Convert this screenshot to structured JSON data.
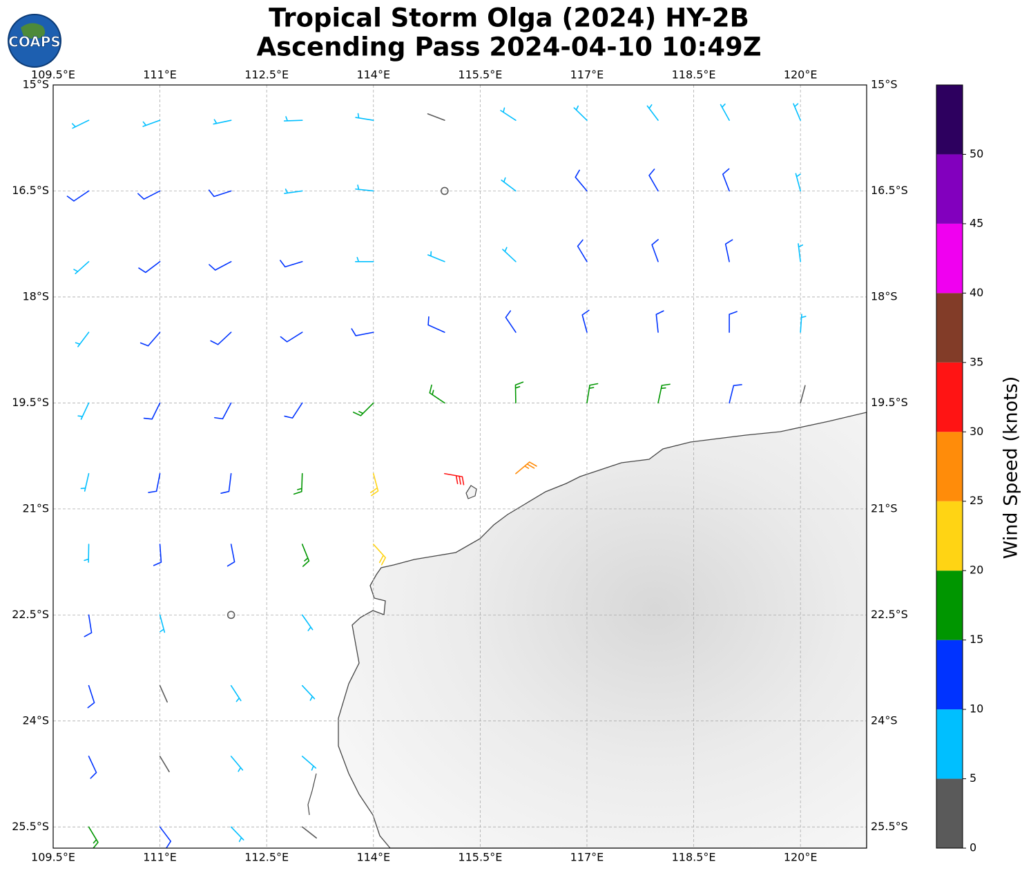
{
  "chart_data": {
    "type": "wind-barbs",
    "logo": "COAPS",
    "title": "Tropical Storm Olga (2024) HY-2B",
    "subtitle": "Ascending Pass 2024-04-10 10:49Z",
    "xlim": [
      109.5,
      120.93
    ],
    "ylim": [
      -25.8,
      -15
    ],
    "xticks": [
      {
        "value": 109.5,
        "label": "109.5°E"
      },
      {
        "value": 111,
        "label": "111°E"
      },
      {
        "value": 112.5,
        "label": "112.5°E"
      },
      {
        "value": 114,
        "label": "114°E"
      },
      {
        "value": 115.5,
        "label": "115.5°E"
      },
      {
        "value": 117,
        "label": "117°E"
      },
      {
        "value": 118.5,
        "label": "118.5°E"
      },
      {
        "value": 120,
        "label": "120°E"
      }
    ],
    "yticks": [
      {
        "value": -15,
        "label": "15°S"
      },
      {
        "value": -16.5,
        "label": "16.5°S"
      },
      {
        "value": -18,
        "label": "18°S"
      },
      {
        "value": -19.5,
        "label": "19.5°S"
      },
      {
        "value": -21,
        "label": "21°S"
      },
      {
        "value": -22.5,
        "label": "22.5°S"
      },
      {
        "value": -24,
        "label": "24°S"
      },
      {
        "value": -25.5,
        "label": "25.5°S"
      }
    ],
    "grid": true,
    "colorbar": {
      "label": "Wind Speed (knots)",
      "lim": [
        0,
        55
      ],
      "ticks": [
        0,
        5,
        10,
        15,
        20,
        25,
        30,
        35,
        40,
        45,
        50
      ],
      "colors": [
        "#5a5a5a",
        "#00bfff",
        "#0033ff",
        "#009600",
        "#ffd414",
        "#ff8c0a",
        "#ff1414",
        "#823c28",
        "#f000f0",
        "#8200be",
        "#2d005f"
      ]
    },
    "barbs": {
      "lon": [
        110,
        111,
        112,
        113,
        114,
        115,
        116,
        117,
        118,
        119,
        120,
        110,
        111,
        112,
        113,
        114,
        115,
        116,
        117,
        118,
        119,
        120,
        110,
        111,
        112,
        113,
        114,
        115,
        116,
        117,
        118,
        119,
        120,
        110,
        111,
        112,
        113,
        114,
        115,
        116,
        117,
        118,
        119,
        120,
        110,
        111,
        112,
        113,
        114,
        115,
        116,
        117,
        118,
        119,
        120,
        110,
        111,
        112,
        113,
        114,
        115,
        116,
        110,
        111,
        112,
        113,
        114,
        110,
        111,
        112,
        113,
        110,
        111,
        112,
        113,
        110,
        111,
        112,
        113,
        110,
        111,
        112,
        113
      ],
      "lat": [
        -15.5,
        -15.5,
        -15.5,
        -15.5,
        -15.5,
        -15.5,
        -15.5,
        -15.5,
        -15.5,
        -15.5,
        -15.5,
        -16.5,
        -16.5,
        -16.5,
        -16.5,
        -16.5,
        -16.5,
        -16.5,
        -16.5,
        -16.5,
        -16.5,
        -16.5,
        -17.5,
        -17.5,
        -17.5,
        -17.5,
        -17.5,
        -17.5,
        -17.5,
        -17.5,
        -17.5,
        -17.5,
        -17.5,
        -18.5,
        -18.5,
        -18.5,
        -18.5,
        -18.5,
        -18.5,
        -18.5,
        -18.5,
        -18.5,
        -18.5,
        -18.5,
        -19.5,
        -19.5,
        -19.5,
        -19.5,
        -19.5,
        -19.5,
        -19.5,
        -19.5,
        -19.5,
        -19.5,
        -19.5,
        -20.5,
        -20.5,
        -20.5,
        -20.5,
        -20.5,
        -20.5,
        -20.5,
        -21.5,
        -21.5,
        -21.5,
        -21.5,
        -21.5,
        -22.5,
        -22.5,
        -22.5,
        -22.5,
        -23.5,
        -23.5,
        -23.5,
        -23.5,
        -24.5,
        -24.5,
        -24.5,
        -24.5,
        -25.5,
        -25.5,
        -25.5,
        -25.5
      ],
      "speed": [
        9,
        9,
        8,
        8,
        6,
        3,
        6,
        8,
        9,
        9,
        8,
        11,
        12,
        11,
        9,
        6,
        2,
        7,
        11,
        12,
        10,
        8,
        9,
        11,
        12,
        12,
        9,
        7,
        9,
        12,
        13,
        11,
        8,
        9,
        11,
        13,
        14,
        12,
        11,
        12,
        14,
        13,
        11,
        9,
        9,
        11,
        13,
        14,
        17,
        17,
        19,
        18,
        15,
        12,
        4,
        9,
        11,
        13,
        15,
        22,
        31,
        27,
        9,
        11,
        13,
        17,
        22,
        10,
        8,
        2,
        9,
        11,
        4,
        6,
        9,
        13,
        4,
        8,
        8,
        16,
        12,
        6,
        4
      ],
      "direction": [
        244,
        250,
        258,
        268,
        279,
        291,
        303,
        314,
        323,
        331,
        337,
        236,
        243,
        252,
        262,
        276,
        292,
        307,
        320,
        330,
        339,
        345,
        228,
        233,
        242,
        253,
        270,
        292,
        313,
        329,
        340,
        348,
        353,
        217,
        221,
        227,
        238,
        259,
        294,
        326,
        345,
        354,
        0,
        4,
        205,
        206,
        208,
        213,
        225,
        304,
        359,
        9,
        12,
        14,
        15,
        193,
        191,
        187,
        182,
        165,
        100,
        50,
        181,
        176,
        169,
        158,
        138,
        171,
        165,
        156,
        145,
        162,
        156,
        147,
        137,
        155,
        149,
        140,
        131,
        149,
        143,
        136,
        128
      ]
    }
  }
}
